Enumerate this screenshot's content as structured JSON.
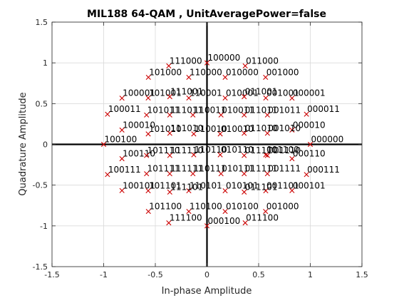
{
  "chart_data": {
    "type": "scatter",
    "title": "MIL188 64-QAM , UnitAveragePower=false",
    "xlabel": "In-phase Amplitude",
    "ylabel": "Quadrature Amplitude",
    "xlim": [
      -1.5,
      1.5
    ],
    "ylim": [
      -1.5,
      1.5
    ],
    "xticks": [
      "-1.5",
      "-1",
      "-0.5",
      "0",
      "0.5",
      "1",
      "1.5"
    ],
    "yticks": [
      "-1.5",
      "-1",
      "-0.5",
      "0",
      "0.5",
      "1",
      "1.5"
    ],
    "grid": true,
    "marker_color": "#cc0000",
    "points": [
      {
        "label": "000000",
        "x": 1.0,
        "y": 0.0
      },
      {
        "label": "000001",
        "x": 0.823,
        "y": 0.567
      },
      {
        "label": "000010",
        "x": 0.823,
        "y": 0.176
      },
      {
        "label": "000011",
        "x": 0.963,
        "y": 0.37
      },
      {
        "label": "000100",
        "x": 0.0,
        "y": -1.0
      },
      {
        "label": "000101",
        "x": 0.823,
        "y": -0.567
      },
      {
        "label": "000110",
        "x": 0.823,
        "y": -0.176
      },
      {
        "label": "000111",
        "x": 0.963,
        "y": -0.37
      },
      {
        "label": "001000",
        "x": 0.567,
        "y": -0.823
      },
      {
        "label": "001000",
        "x": 0.567,
        "y": 0.823
      },
      {
        "label": "001001",
        "x": 0.569,
        "y": 0.569
      },
      {
        "label": "001010",
        "x": 0.585,
        "y": 0.136
      },
      {
        "label": "001011",
        "x": 0.585,
        "y": 0.36
      },
      {
        "label": "001100",
        "x": 0.569,
        "y": -0.128
      },
      {
        "label": "001101",
        "x": 0.569,
        "y": -0.569
      },
      {
        "label": "001110",
        "x": 0.585,
        "y": -0.136
      },
      {
        "label": "001111",
        "x": 0.585,
        "y": -0.36
      },
      {
        "label": "010000",
        "x": 0.176,
        "y": 0.823
      },
      {
        "label": "010001",
        "x": 0.176,
        "y": 0.569
      },
      {
        "label": "010010",
        "x": 0.128,
        "y": 0.128
      },
      {
        "label": "010011",
        "x": 0.136,
        "y": 0.36
      },
      {
        "label": "010100",
        "x": 0.176,
        "y": -0.823
      },
      {
        "label": "010101",
        "x": 0.176,
        "y": -0.569
      },
      {
        "label": "010110",
        "x": 0.128,
        "y": -0.128
      },
      {
        "label": "010111",
        "x": 0.136,
        "y": -0.36
      },
      {
        "label": "011000",
        "x": 0.37,
        "y": 0.963
      },
      {
        "label": "011001",
        "x": 0.36,
        "y": 0.585
      },
      {
        "label": "011010",
        "x": 0.36,
        "y": 0.136
      },
      {
        "label": "011011",
        "x": 0.36,
        "y": 0.36
      },
      {
        "label": "011100",
        "x": 0.37,
        "y": -0.963
      },
      {
        "label": "011101",
        "x": 0.36,
        "y": -0.585
      },
      {
        "label": "011110",
        "x": 0.36,
        "y": -0.136
      },
      {
        "label": "011111",
        "x": 0.36,
        "y": -0.36
      },
      {
        "label": "100000",
        "x": 0.0,
        "y": 1.0
      },
      {
        "label": "100001",
        "x": -0.823,
        "y": 0.567
      },
      {
        "label": "100010",
        "x": -0.823,
        "y": 0.176
      },
      {
        "label": "100011",
        "x": -0.963,
        "y": 0.37
      },
      {
        "label": "100100",
        "x": -1.0,
        "y": 0.0
      },
      {
        "label": "100101",
        "x": -0.823,
        "y": -0.567
      },
      {
        "label": "100110",
        "x": -0.823,
        "y": -0.176
      },
      {
        "label": "100111",
        "x": -0.963,
        "y": -0.37
      },
      {
        "label": "101000",
        "x": -0.567,
        "y": 0.823
      },
      {
        "label": "101001",
        "x": -0.569,
        "y": 0.569
      },
      {
        "label": "101010",
        "x": -0.569,
        "y": 0.128
      },
      {
        "label": "101011",
        "x": -0.585,
        "y": 0.36
      },
      {
        "label": "101100",
        "x": -0.567,
        "y": -0.823
      },
      {
        "label": "101101",
        "x": -0.569,
        "y": -0.569
      },
      {
        "label": "101110",
        "x": -0.585,
        "y": -0.136
      },
      {
        "label": "101111",
        "x": -0.585,
        "y": -0.36
      },
      {
        "label": "110000",
        "x": -0.176,
        "y": 0.823
      },
      {
        "label": "110001",
        "x": -0.176,
        "y": 0.569
      },
      {
        "label": "110010",
        "x": -0.128,
        "y": 0.128
      },
      {
        "label": "110011",
        "x": -0.136,
        "y": 0.36
      },
      {
        "label": "110100",
        "x": -0.176,
        "y": -0.823
      },
      {
        "label": "110101",
        "x": -0.176,
        "y": -0.569
      },
      {
        "label": "110110",
        "x": -0.128,
        "y": -0.128
      },
      {
        "label": "110111",
        "x": -0.136,
        "y": -0.36
      },
      {
        "label": "111000",
        "x": -0.37,
        "y": 0.963
      },
      {
        "label": "111001",
        "x": -0.36,
        "y": 0.585
      },
      {
        "label": "111010",
        "x": -0.36,
        "y": 0.136
      },
      {
        "label": "111011",
        "x": -0.36,
        "y": 0.36
      },
      {
        "label": "111100",
        "x": -0.37,
        "y": -0.963
      },
      {
        "label": "111101",
        "x": -0.36,
        "y": -0.585
      },
      {
        "label": "111110",
        "x": -0.36,
        "y": -0.136
      },
      {
        "label": "111111",
        "x": -0.36,
        "y": -0.36
      }
    ]
  }
}
